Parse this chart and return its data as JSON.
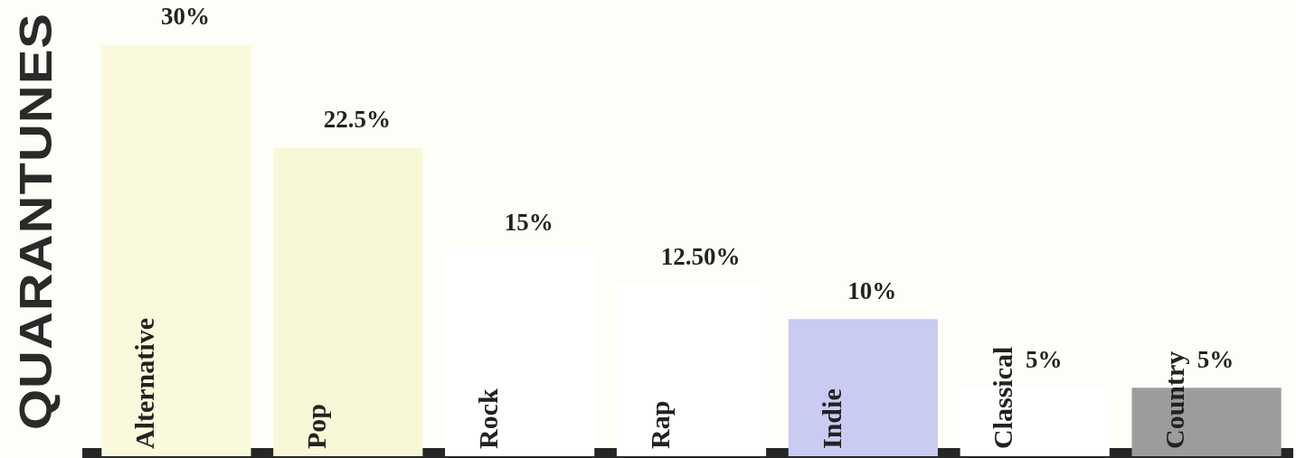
{
  "chart_data": {
    "type": "bar",
    "title": "QUARANTUNES",
    "categories": [
      "Alternative",
      "Pop",
      "Rock",
      "Rap",
      "Indie",
      "Classical",
      "Country"
    ],
    "values": [
      30,
      22.5,
      15,
      12.5,
      10,
      5,
      5
    ],
    "colors": [
      "#fbf9dc",
      "#f9f8d6",
      "#ffffff",
      "#ffffff",
      "#c9cbf2",
      "#ffffff",
      "#9c9c9c"
    ],
    "value_labels": [
      "30%",
      "22.5%",
      "15%",
      "12.50%",
      "10%",
      "5%",
      "5%"
    ],
    "grid": false,
    "legend": false
  }
}
